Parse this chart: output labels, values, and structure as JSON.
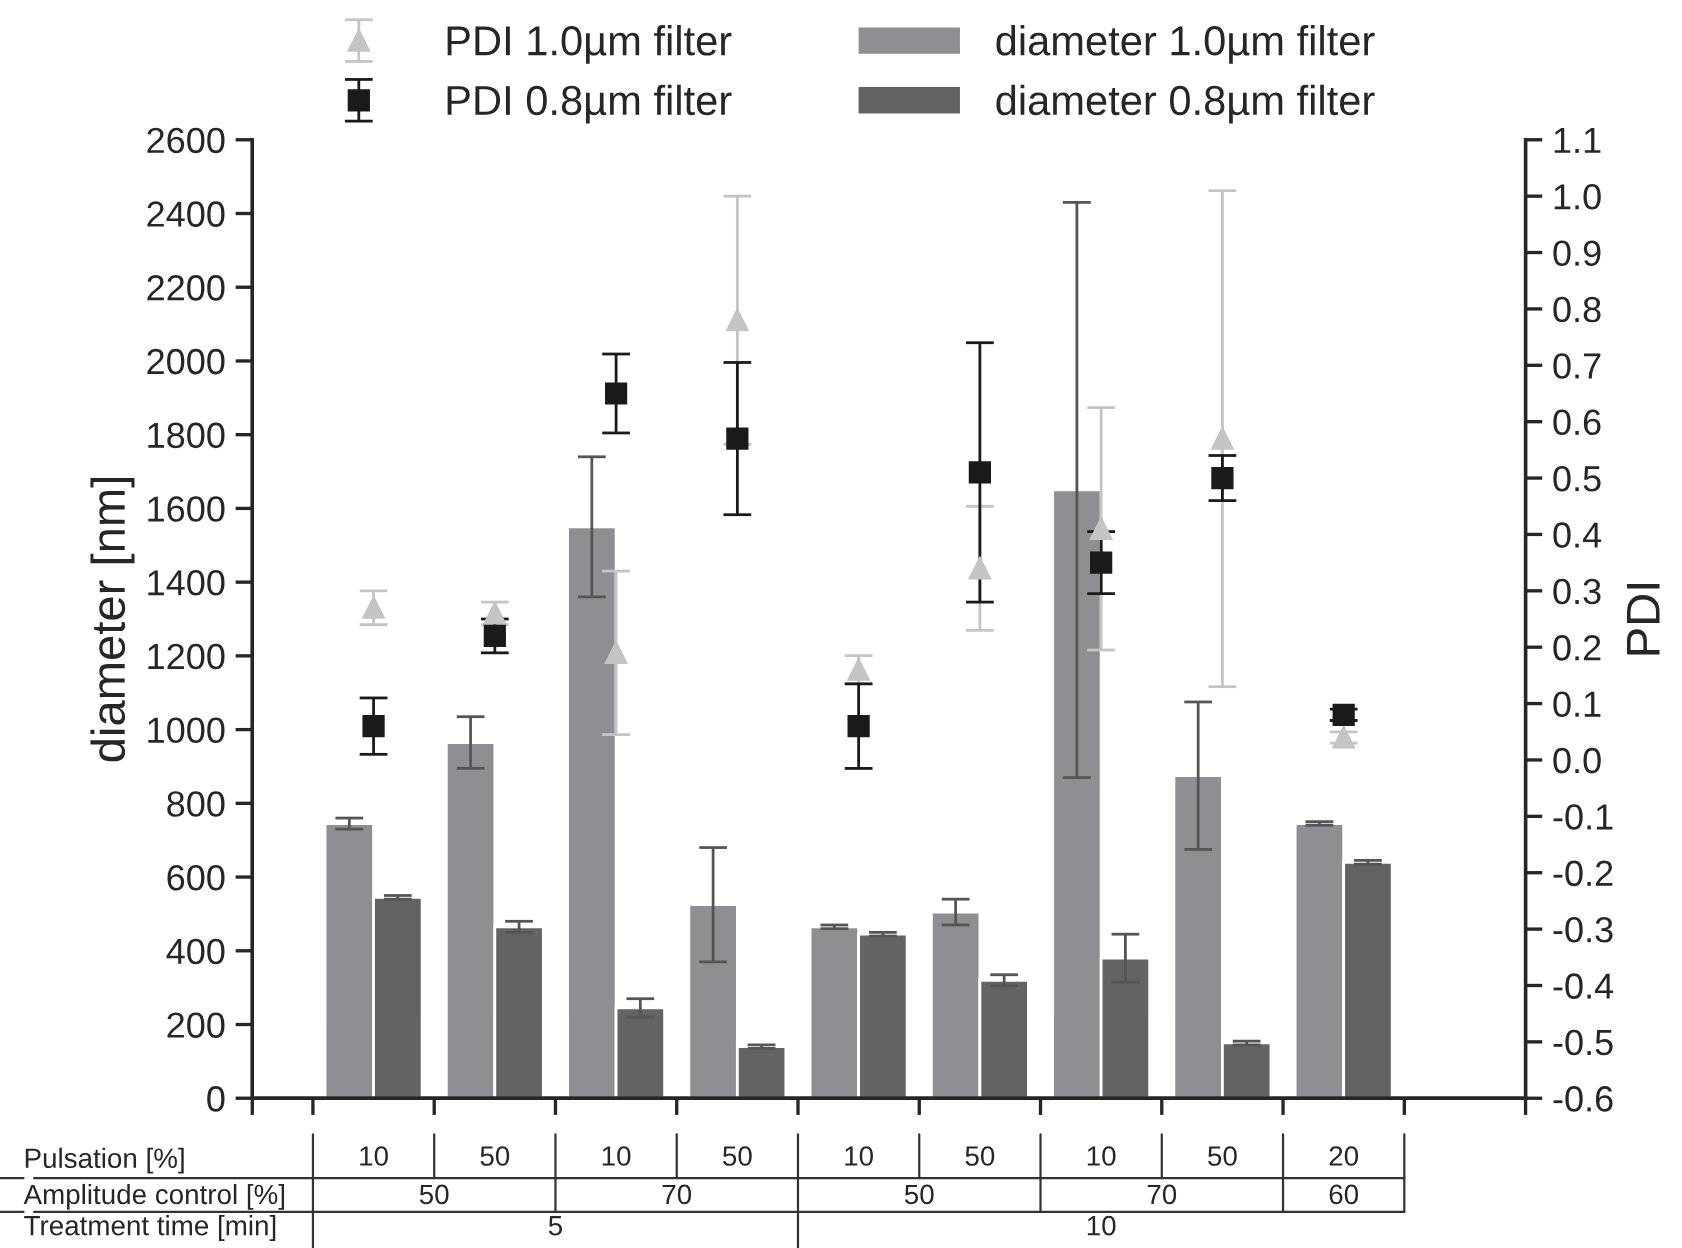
{
  "chart_data": {
    "type": "bar",
    "categories": [
      "10",
      "50",
      "10",
      "50",
      "10",
      "50",
      "10",
      "50",
      "20"
    ],
    "ylabel": "diameter [nm]",
    "y2label": "PDI",
    "ylim": [
      0,
      2600
    ],
    "yticks": [
      0,
      200,
      400,
      600,
      800,
      1000,
      1200,
      1400,
      1600,
      1800,
      2000,
      2200,
      2400,
      2600
    ],
    "y2lim": [
      -0.6,
      1.1
    ],
    "y2ticks": [
      {
        "value": -0.6,
        "label": "-0.6"
      },
      {
        "value": -0.5,
        "label": "-0.5"
      },
      {
        "value": -0.4,
        "label": "-0.4"
      },
      {
        "value": -0.3,
        "label": "-0.3"
      },
      {
        "value": -0.2,
        "label": "-0.2"
      },
      {
        "value": -0.1,
        "label": "-0.1"
      },
      {
        "value": 0,
        "label": "0.0"
      },
      {
        "value": 0.1,
        "label": "0.1"
      },
      {
        "value": 0.2,
        "label": "0.2"
      },
      {
        "value": 0.3,
        "label": "0.3"
      },
      {
        "value": 0.4,
        "label": "0.4"
      },
      {
        "value": 0.5,
        "label": "0.5"
      },
      {
        "value": 0.6,
        "label": "0.6"
      },
      {
        "value": 0.7,
        "label": "0.7"
      },
      {
        "value": 0.8,
        "label": "0.8"
      },
      {
        "value": 0.9,
        "label": "0.9"
      },
      {
        "value": 1,
        "label": "1.0"
      },
      {
        "value": 1.1,
        "label": "1.1"
      }
    ],
    "legend": "top",
    "grid": false,
    "annotations": [
      "Pulsation [%]",
      "Amplitude control [%]",
      "Treatment time [min]",
      "50",
      "70",
      "50",
      "70",
      "60",
      "5",
      "10"
    ],
    "series": [
      {
        "name": "PDI 1.0µm filter",
        "type": "scatter",
        "axis": "y2",
        "marker": "triangle",
        "color": "#c4c4c4",
        "values": [
          0.27,
          0.26,
          0.19,
          0.78,
          0.16,
          0.34,
          0.41,
          0.57,
          0.04
        ],
        "errors": [
          0.03,
          0.02,
          0.145,
          0.22,
          0.025,
          0.11,
          0.215,
          0.44,
          0.01
        ]
      },
      {
        "name": "PDI 0.8µm filter",
        "type": "scatter",
        "axis": "y2",
        "marker": "square",
        "color": "#1a1a1a",
        "values": [
          0.06,
          0.22,
          0.65,
          0.57,
          0.06,
          0.51,
          0.35,
          0.5,
          0.08
        ],
        "errors": [
          0.05,
          0.03,
          0.07,
          0.135,
          0.075,
          0.23,
          0.055,
          0.04,
          0.01
        ]
      },
      {
        "name": "diameter 1.0µm filter",
        "color": "#8e8f92",
        "values": [
          745,
          965,
          1550,
          525,
          465,
          505,
          1650,
          875,
          745
        ],
        "errors": [
          15,
          70,
          190,
          155,
          5,
          35,
          780,
          200,
          5
        ]
      },
      {
        "name": "diameter 0.8µm filter",
        "color": "#636366",
        "values": [
          545,
          465,
          245,
          140,
          445,
          320,
          380,
          150,
          640
        ],
        "errors": [
          5,
          15,
          25,
          5,
          5,
          15,
          65,
          5,
          5
        ]
      }
    ]
  }
}
